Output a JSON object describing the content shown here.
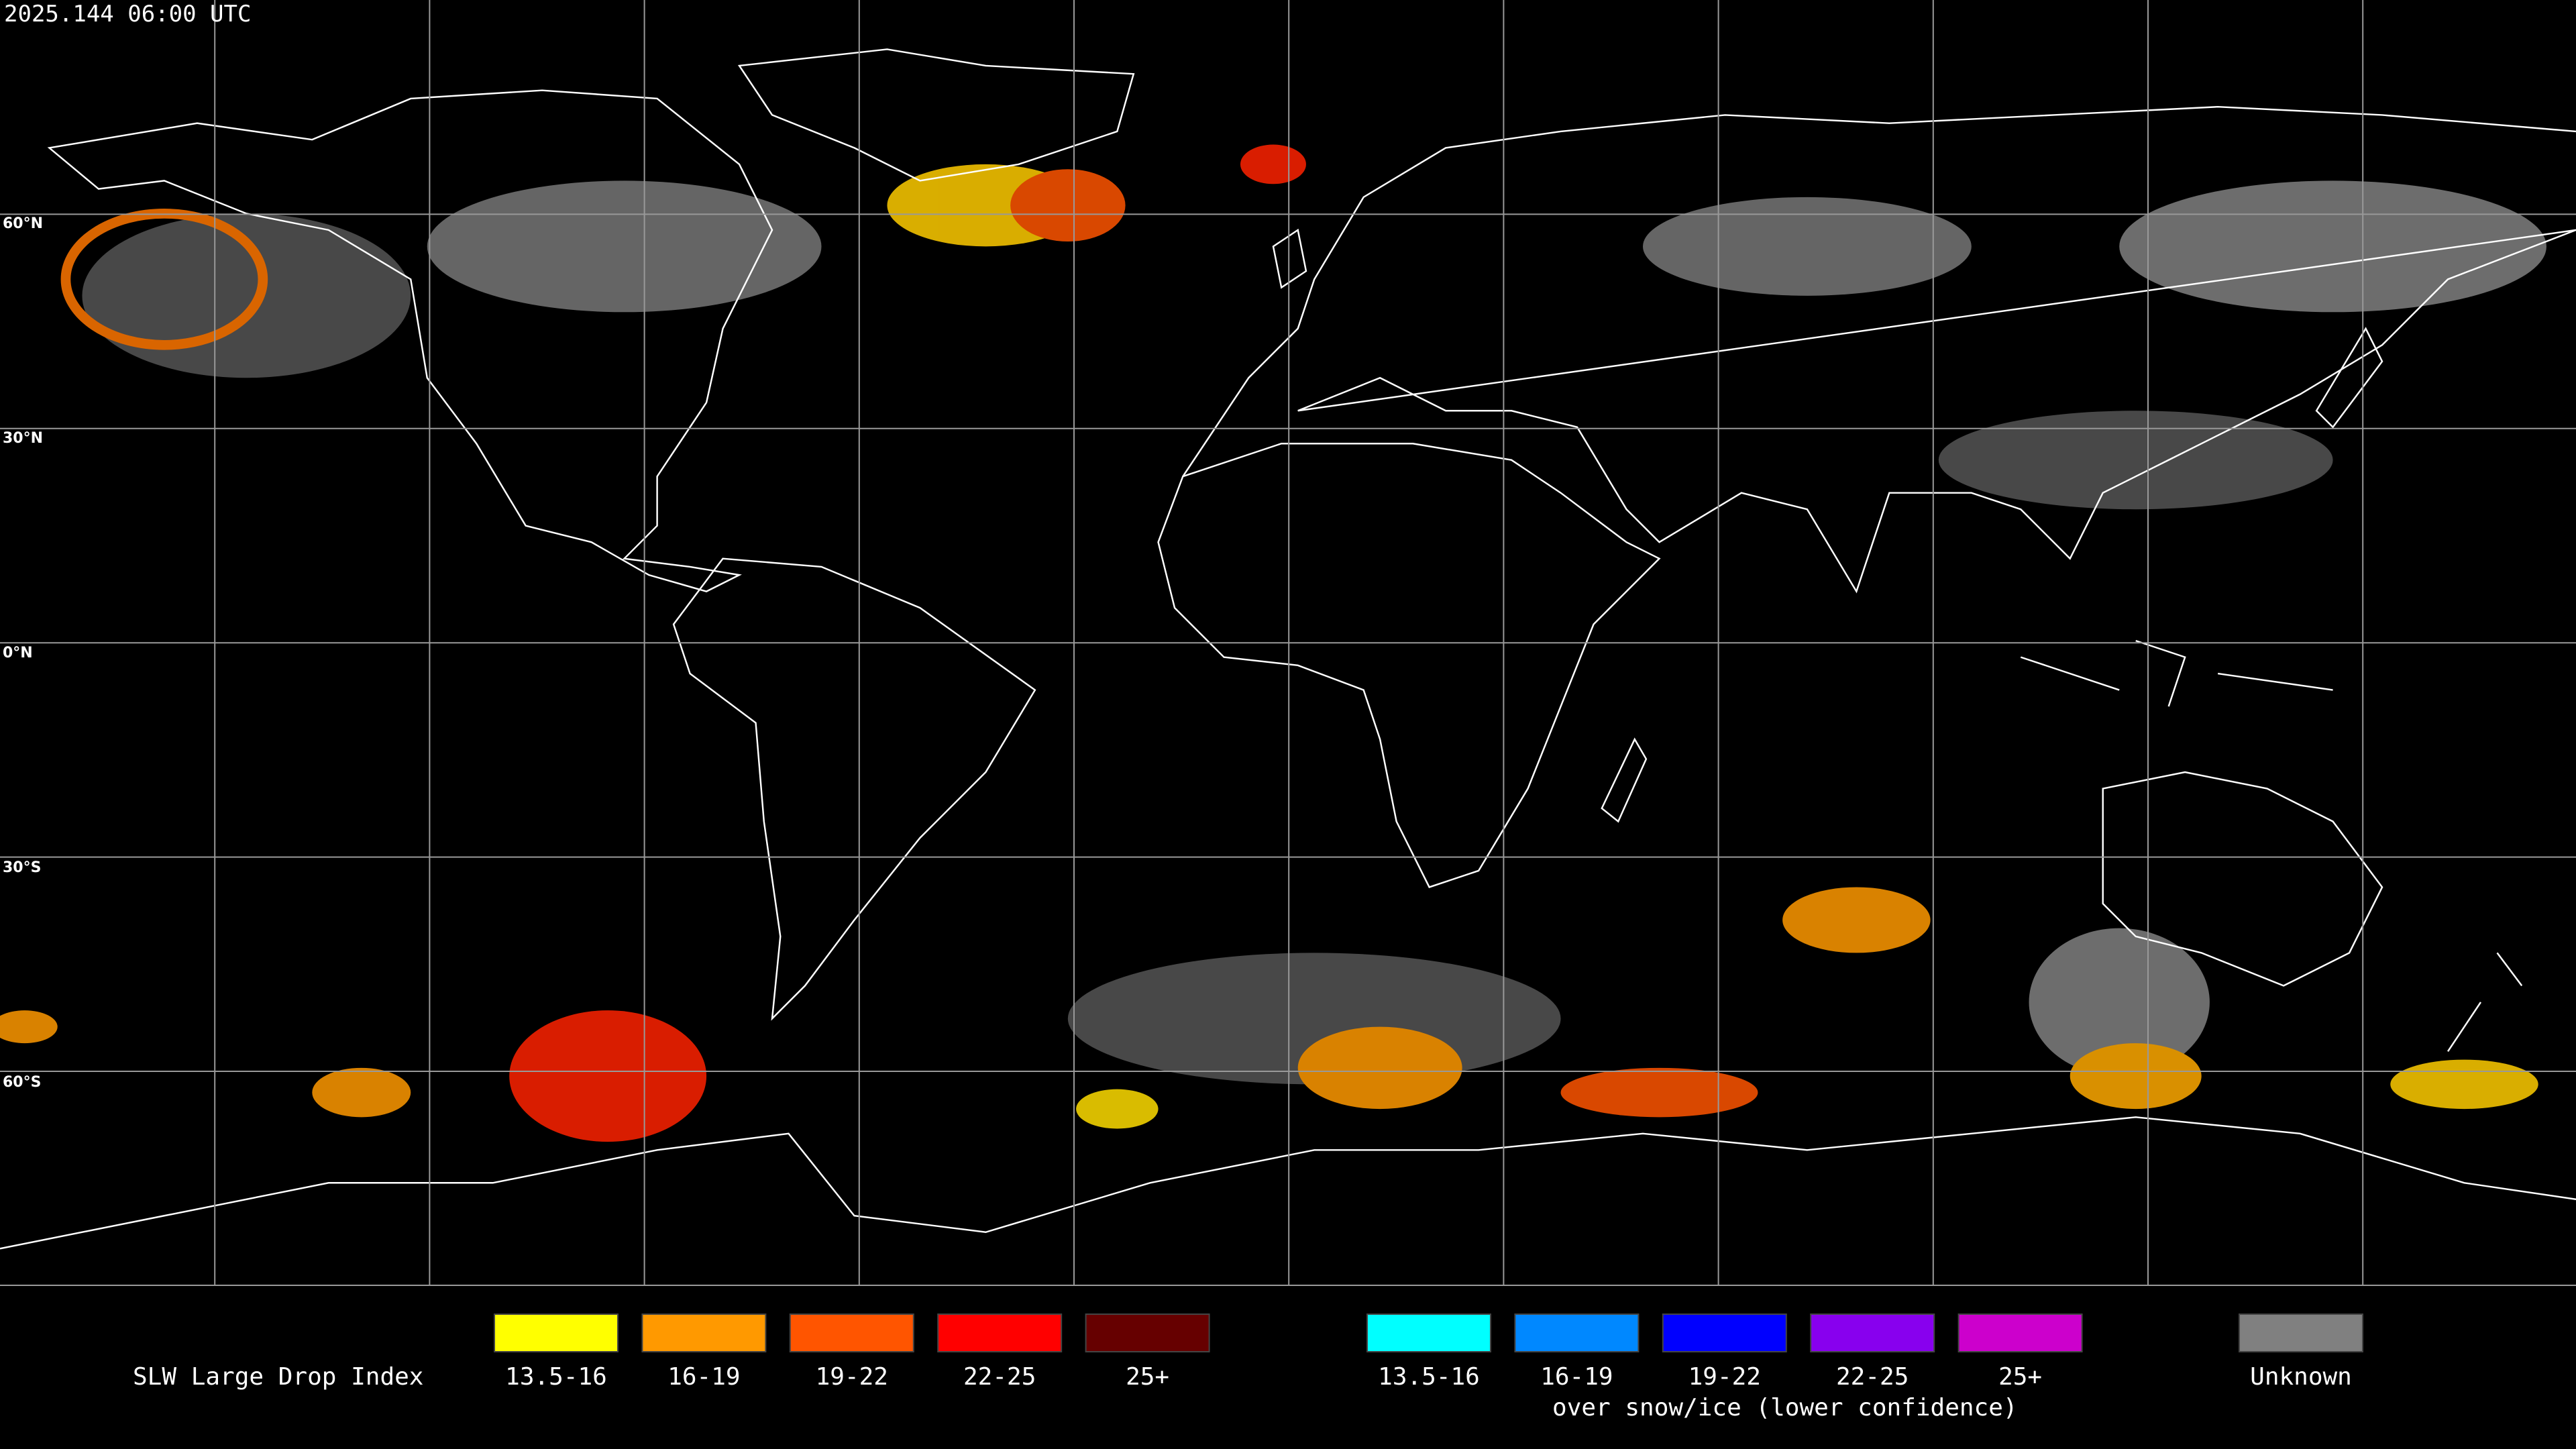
{
  "header": {
    "title": "2025.144 06:00 UTC"
  },
  "map": {
    "lat_labels": [
      "60°N",
      "30°N",
      "0°N",
      "30°S",
      "60°S"
    ]
  },
  "legend": {
    "title": "SLW Large Drop Index",
    "groups": [
      {
        "items": [
          {
            "label": "13.5-16",
            "color": "#ffff00"
          },
          {
            "label": "16-19",
            "color": "#ff9900"
          },
          {
            "label": "19-22",
            "color": "#ff5500"
          },
          {
            "label": "22-25",
            "color": "#ff0000"
          },
          {
            "label": "25+",
            "color": "#660000"
          }
        ]
      },
      {
        "items": [
          {
            "label": "13.5-16",
            "color": "#00ffff"
          },
          {
            "label": "16-19",
            "color": "#0088ff"
          },
          {
            "label": "19-22",
            "color": "#0000ff"
          },
          {
            "label": "22-25",
            "color": "#8800ee"
          },
          {
            "label": "25+",
            "color": "#cc00cc"
          }
        ],
        "caption": "over snow/ice (lower confidence)"
      }
    ],
    "unknown": {
      "label": "Unknown",
      "color": "#808080"
    }
  }
}
